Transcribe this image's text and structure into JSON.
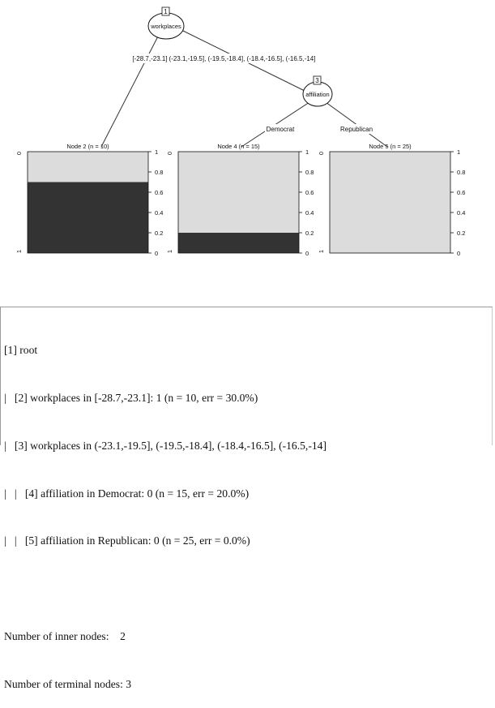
{
  "tree": {
    "node_1": {
      "id": "1",
      "label": "workplaces"
    },
    "node_3": {
      "id": "3",
      "label": "affiliation"
    },
    "edges": {
      "root_left": "[-28.7,-23.1]",
      "root_right": "(-23.1,-19.5], (-19.5,-18.4], (-18.4,-16.5], (-16.5,-14]",
      "n3_left": "Democrat",
      "n3_right": "Republican"
    },
    "terminal_nodes": [
      {
        "title": "Node 2 (n = 10)",
        "class_1_fraction": 0.7
      },
      {
        "title": "Node 4 (n = 15)",
        "class_1_fraction": 0.2
      },
      {
        "title": "Node 5 (n = 25)",
        "class_1_fraction": 0.0
      }
    ],
    "left_axis": {
      "top": "0",
      "bottom": "1"
    },
    "right_axis_ticks": [
      "1",
      "0.8",
      "0.6",
      "0.4",
      "0.2",
      "0"
    ],
    "colors": {
      "class_0": "#dcdcdc",
      "class_1": "#333333"
    }
  },
  "console": {
    "lines": [
      "[1] root",
      "|   [2] workplaces in [-28.7,-23.1]: 1 (n = 10, err = 30.0%)",
      "|   [3] workplaces in (-23.1,-19.5], (-19.5,-18.4], (-18.4,-16.5], (-16.5,-14]",
      "|   |   [4] affiliation in Democrat: 0 (n = 15, err = 20.0%)",
      "|   |   [5] affiliation in Republican: 0 (n = 25, err = 0.0%)",
      "",
      "Number of inner nodes:    2",
      "Number of terminal nodes: 3"
    ]
  }
}
